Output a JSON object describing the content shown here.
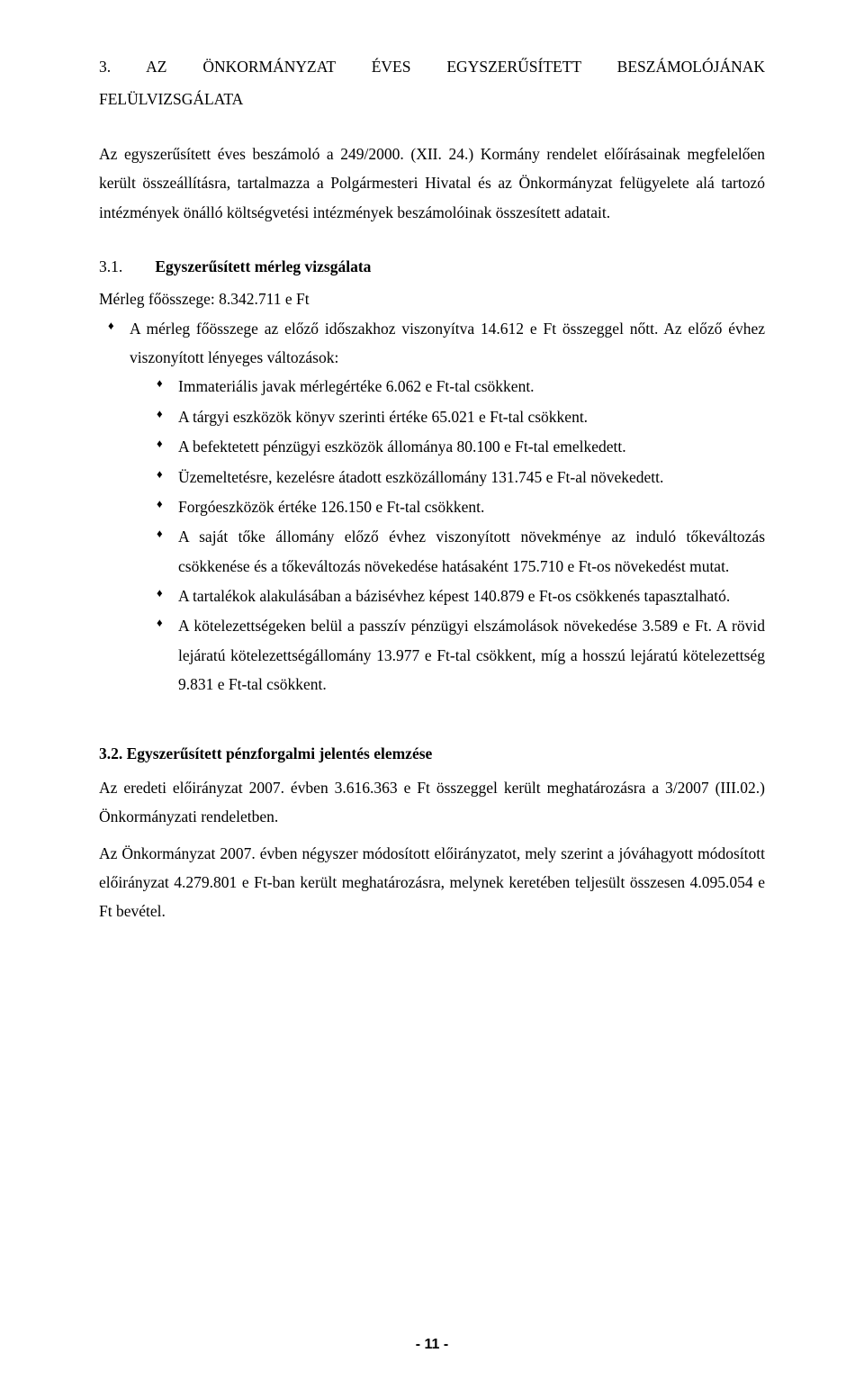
{
  "heading_line1": "3.  AZ    ÖNKORMÁNYZAT    ÉVES    EGYSZERŰSÍTETT    BESZÁMOLÓJÁNAK",
  "heading_line2": "FELÜLVIZSGÁLATA",
  "intro_para": "Az egyszerűsített éves beszámoló a 249/2000. (XII. 24.) Kormány rendelet előírásainak megfelelően került összeállításra, tartalmazza a Polgármesteri Hivatal és az Önkormányzat felügyelete alá tartozó intézmények önálló költségvetési intézmények beszámolóinak összesített adatait.",
  "s31_num": "3.1.",
  "s31_title": "Egyszerűsített mérleg vizsgálata",
  "s31_line": "Mérleg főösszege: 8.342.711 e Ft",
  "s31_b1_a": "A mérleg főösszege az előző időszakhoz viszonyítva 14.612 e Ft összeggel nőtt. Az előző évhez viszonyított lényeges változások:",
  "s31_b1_s1": "Immateriális javak mérlegértéke 6.062 e Ft-tal csökkent.",
  "s31_b1_s2": "A tárgyi eszközök könyv szerinti értéke 65.021 e Ft-tal csökkent.",
  "s31_b1_s3": "A befektetett pénzügyi eszközök állománya 80.100 e Ft-tal emelkedett.",
  "s31_b1_s4": "Üzemeltetésre, kezelésre átadott eszközállomány 131.745 e Ft-al növekedett.",
  "s31_b1_s5": "Forgóeszközök értéke 126.150 e Ft-tal csökkent.",
  "s31_b1_s6": "A saját tőke állomány előző évhez viszonyított növekménye az induló tőkeváltozás csökkenése és a tőkeváltozás növekedése hatásaként 175.710 e Ft-os növekedést mutat.",
  "s31_b1_s7": "A tartalékok alakulásában a bázisévhez képest 140.879 e Ft-os csökkenés tapasztalható.",
  "s31_b1_s8": "A kötelezettségeken belül a passzív pénzügyi elszámolások növekedése 3.589 e Ft. A rövid lejáratú kötelezettségállomány 13.977 e Ft-tal csökkent, míg a hosszú lejáratú kötelezettség 9.831 e Ft-tal csökkent.",
  "s32_title": "3.2. Egyszerűsített pénzforgalmi jelentés elemzése",
  "s32_p1": "Az eredeti előirányzat 2007. évben 3.616.363 e Ft összeggel került meghatározásra a 3/2007 (III.02.) Önkormányzati rendeletben.",
  "s32_p2": "Az Önkormányzat 2007. évben négyszer módosított előirányzatot, mely szerint a jóváhagyott módosított előirányzat 4.279.801 e Ft-ban került meghatározásra, melynek keretében teljesült összesen 4.095.054 e Ft bevétel.",
  "page_number": "- 11 -"
}
